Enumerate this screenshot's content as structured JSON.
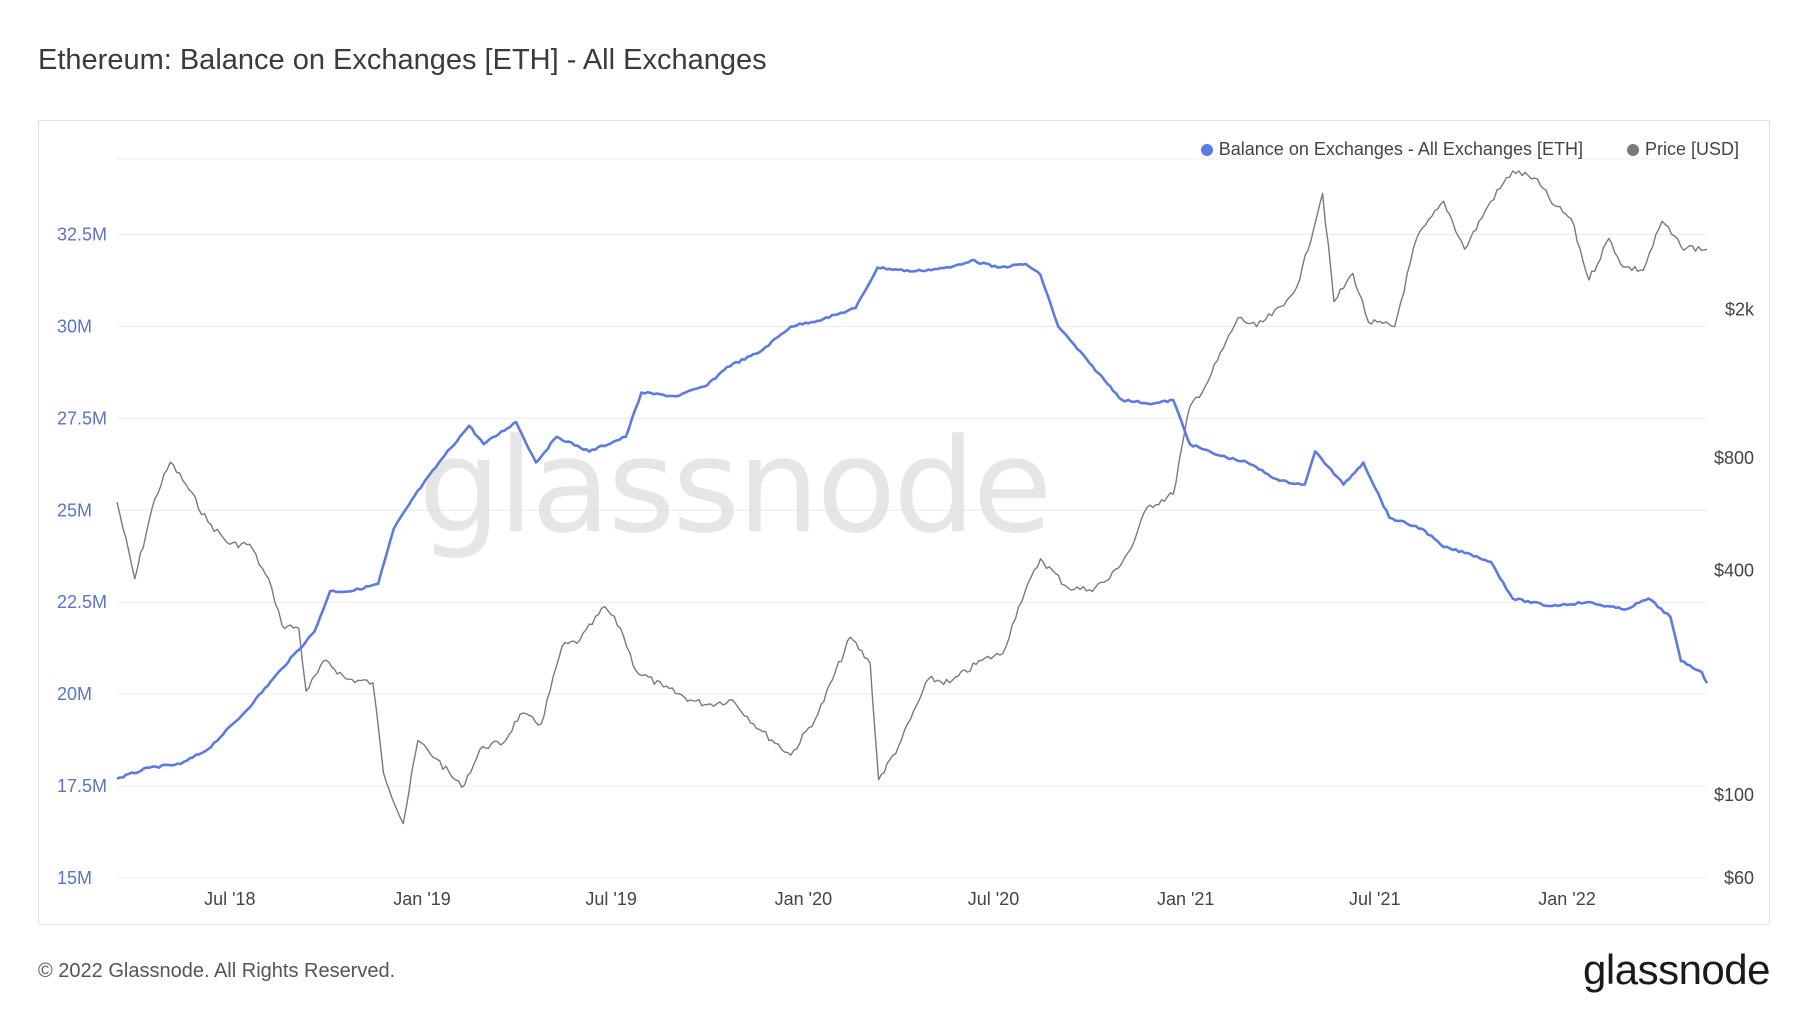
{
  "header": {
    "title": "Ethereum: Balance on Exchanges [ETH] - All Exchanges"
  },
  "legend": {
    "balance_label": "Balance on Exchanges - All Exchanges [ETH]",
    "price_label": "Price [USD]"
  },
  "colors": {
    "balance": "#5b7be0",
    "price": "#7a7a7a",
    "grid": "#ececec"
  },
  "watermark": "glassnode",
  "footer": {
    "copyright": "© 2022 Glassnode. All Rights Reserved.",
    "brand": "glassnode"
  },
  "chart_data": {
    "type": "line",
    "x_range": [
      "2018-03-15",
      "2022-05-15"
    ],
    "x_ticks": [
      {
        "label": "Jul '18",
        "date": "2018-07-01"
      },
      {
        "label": "Jan '19",
        "date": "2019-01-01"
      },
      {
        "label": "Jul '19",
        "date": "2019-07-01"
      },
      {
        "label": "Jan '20",
        "date": "2020-01-01"
      },
      {
        "label": "Jul '20",
        "date": "2020-07-01"
      },
      {
        "label": "Jan '21",
        "date": "2021-01-01"
      },
      {
        "label": "Jul '21",
        "date": "2021-07-01"
      },
      {
        "label": "Jan '22",
        "date": "2022-01-01"
      }
    ],
    "y_left": {
      "range": [
        15000000,
        34500000
      ],
      "ticks": [
        {
          "label": "15M",
          "value": 15000000
        },
        {
          "label": "17.5M",
          "value": 17500000
        },
        {
          "label": "20M",
          "value": 20000000
        },
        {
          "label": "22.5M",
          "value": 22500000
        },
        {
          "label": "25M",
          "value": 25000000
        },
        {
          "label": "27.5M",
          "value": 27500000
        },
        {
          "label": "30M",
          "value": 30000000
        },
        {
          "label": "32.5M",
          "value": 32500000
        }
      ]
    },
    "y_right": {
      "scale": "log",
      "range": [
        60,
        5000
      ],
      "ticks": [
        {
          "label": "$60",
          "value": 60
        },
        {
          "label": "$100",
          "value": 100
        },
        {
          "label": "$400",
          "value": 400
        },
        {
          "label": "$800",
          "value": 800
        },
        {
          "label": "$2k",
          "value": 2000
        }
      ]
    },
    "series": [
      {
        "name": "Balance on Exchanges - All Exchanges [ETH]",
        "axis": "left",
        "points": [
          [
            "2018-03-15",
            17700000
          ],
          [
            "2018-04-15",
            18000000
          ],
          [
            "2018-05-15",
            18100000
          ],
          [
            "2018-06-10",
            18500000
          ],
          [
            "2018-07-15",
            19500000
          ],
          [
            "2018-08-20",
            20700000
          ],
          [
            "2018-09-20",
            21700000
          ],
          [
            "2018-10-05",
            22800000
          ],
          [
            "2018-10-25",
            22800000
          ],
          [
            "2018-11-20",
            23000000
          ],
          [
            "2018-12-05",
            24500000
          ],
          [
            "2018-12-25",
            25400000
          ],
          [
            "2019-01-20",
            26400000
          ],
          [
            "2019-02-15",
            27300000
          ],
          [
            "2019-03-01",
            26800000
          ],
          [
            "2019-04-01",
            27400000
          ],
          [
            "2019-04-20",
            26300000
          ],
          [
            "2019-05-10",
            27000000
          ],
          [
            "2019-06-10",
            26600000
          ],
          [
            "2019-07-15",
            27000000
          ],
          [
            "2019-07-30",
            28200000
          ],
          [
            "2019-09-01",
            28100000
          ],
          [
            "2019-10-01",
            28400000
          ],
          [
            "2019-10-20",
            28900000
          ],
          [
            "2019-11-20",
            29300000
          ],
          [
            "2019-12-20",
            30000000
          ],
          [
            "2020-01-20",
            30200000
          ],
          [
            "2020-02-20",
            30500000
          ],
          [
            "2020-03-12",
            31600000
          ],
          [
            "2020-04-15",
            31500000
          ],
          [
            "2020-05-20",
            31600000
          ],
          [
            "2020-06-10",
            31800000
          ],
          [
            "2020-07-05",
            31600000
          ],
          [
            "2020-08-01",
            31700000
          ],
          [
            "2020-08-15",
            31400000
          ],
          [
            "2020-09-01",
            30000000
          ],
          [
            "2020-10-01",
            29000000
          ],
          [
            "2020-11-01",
            28000000
          ],
          [
            "2020-12-01",
            27900000
          ],
          [
            "2020-12-20",
            28000000
          ],
          [
            "2021-01-05",
            26800000
          ],
          [
            "2021-02-01",
            26500000
          ],
          [
            "2021-03-01",
            26300000
          ],
          [
            "2021-04-01",
            25800000
          ],
          [
            "2021-04-25",
            25700000
          ],
          [
            "2021-05-05",
            26600000
          ],
          [
            "2021-06-01",
            25700000
          ],
          [
            "2021-06-20",
            26300000
          ],
          [
            "2021-07-15",
            24800000
          ],
          [
            "2021-08-15",
            24500000
          ],
          [
            "2021-09-05",
            24000000
          ],
          [
            "2021-10-01",
            23800000
          ],
          [
            "2021-10-20",
            23600000
          ],
          [
            "2021-11-10",
            22600000
          ],
          [
            "2021-12-15",
            22400000
          ],
          [
            "2022-01-20",
            22500000
          ],
          [
            "2022-02-25",
            22300000
          ],
          [
            "2022-03-20",
            22600000
          ],
          [
            "2022-04-10",
            22100000
          ],
          [
            "2022-04-20",
            20900000
          ],
          [
            "2022-05-10",
            20600000
          ],
          [
            "2022-05-15",
            20300000
          ]
        ]
      },
      {
        "name": "Price [USD]",
        "axis": "right",
        "points": [
          [
            "2018-03-15",
            610
          ],
          [
            "2018-04-01",
            380
          ],
          [
            "2018-04-20",
            620
          ],
          [
            "2018-05-05",
            780
          ],
          [
            "2018-05-20",
            680
          ],
          [
            "2018-06-10",
            540
          ],
          [
            "2018-07-01",
            470
          ],
          [
            "2018-07-20",
            470
          ],
          [
            "2018-08-10",
            360
          ],
          [
            "2018-08-20",
            285
          ],
          [
            "2018-09-05",
            280
          ],
          [
            "2018-09-12",
            190
          ],
          [
            "2018-10-01",
            230
          ],
          [
            "2018-10-20",
            205
          ],
          [
            "2018-11-15",
            200
          ],
          [
            "2018-11-25",
            115
          ],
          [
            "2018-12-14",
            84
          ],
          [
            "2018-12-28",
            140
          ],
          [
            "2019-01-15",
            125
          ],
          [
            "2019-02-08",
            105
          ],
          [
            "2019-02-28",
            135
          ],
          [
            "2019-03-20",
            138
          ],
          [
            "2019-04-05",
            165
          ],
          [
            "2019-04-25",
            155
          ],
          [
            "2019-05-15",
            250
          ],
          [
            "2019-06-01",
            260
          ],
          [
            "2019-06-25",
            320
          ],
          [
            "2019-07-10",
            280
          ],
          [
            "2019-07-25",
            215
          ],
          [
            "2019-08-20",
            195
          ],
          [
            "2019-09-15",
            180
          ],
          [
            "2019-10-01",
            175
          ],
          [
            "2019-10-25",
            180
          ],
          [
            "2019-11-20",
            150
          ],
          [
            "2019-12-20",
            128
          ],
          [
            "2020-01-15",
            165
          ],
          [
            "2020-02-15",
            265
          ],
          [
            "2020-03-05",
            225
          ],
          [
            "2020-03-13",
            110
          ],
          [
            "2020-04-01",
            135
          ],
          [
            "2020-04-30",
            205
          ],
          [
            "2020-05-20",
            200
          ],
          [
            "2020-06-20",
            230
          ],
          [
            "2020-07-10",
            240
          ],
          [
            "2020-07-25",
            320
          ],
          [
            "2020-08-15",
            430
          ],
          [
            "2020-09-10",
            360
          ],
          [
            "2020-10-01",
            355
          ],
          [
            "2020-10-20",
            380
          ],
          [
            "2020-11-10",
            460
          ],
          [
            "2020-11-25",
            590
          ],
          [
            "2020-12-20",
            640
          ],
          [
            "2021-01-05",
            1100
          ],
          [
            "2021-01-20",
            1250
          ],
          [
            "2021-02-20",
            1900
          ],
          [
            "2021-03-10",
            1800
          ],
          [
            "2021-04-05",
            2050
          ],
          [
            "2021-04-20",
            2400
          ],
          [
            "2021-05-12",
            4100
          ],
          [
            "2021-05-23",
            2100
          ],
          [
            "2021-06-10",
            2500
          ],
          [
            "2021-06-25",
            1850
          ],
          [
            "2021-07-20",
            1800
          ],
          [
            "2021-08-10",
            3100
          ],
          [
            "2021-09-05",
            3900
          ],
          [
            "2021-09-25",
            2900
          ],
          [
            "2021-10-20",
            3900
          ],
          [
            "2021-11-10",
            4700
          ],
          [
            "2021-12-01",
            4500
          ],
          [
            "2021-12-20",
            3800
          ],
          [
            "2022-01-05",
            3500
          ],
          [
            "2022-01-22",
            2400
          ],
          [
            "2022-02-10",
            3100
          ],
          [
            "2022-02-24",
            2600
          ],
          [
            "2022-03-15",
            2550
          ],
          [
            "2022-04-02",
            3450
          ],
          [
            "2022-04-20",
            2950
          ],
          [
            "2022-05-15",
            2900
          ]
        ]
      }
    ]
  }
}
